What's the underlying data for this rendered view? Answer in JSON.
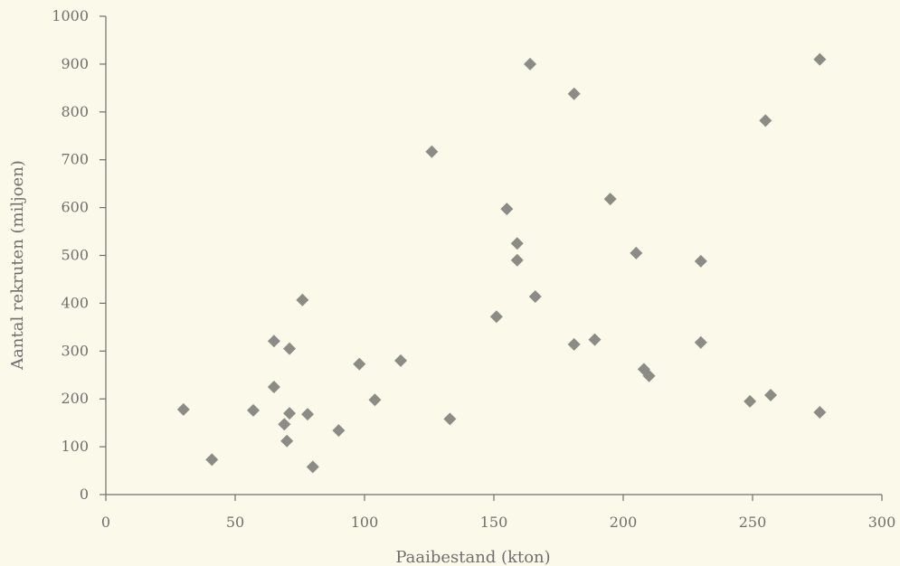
{
  "chart_data": {
    "type": "scatter",
    "title": "",
    "xlabel": "Paaibestand (kton)",
    "ylabel": "Aantal rekruten (miljoen)",
    "xlim": [
      0,
      300
    ],
    "ylim": [
      0,
      1000
    ],
    "xticks": [
      0,
      50,
      100,
      150,
      200,
      250,
      300
    ],
    "yticks": [
      0,
      100,
      200,
      300,
      400,
      500,
      600,
      700,
      800,
      900,
      1000
    ],
    "xtick_labels": [
      "0",
      "50",
      "100",
      "150",
      "200",
      "250",
      "300"
    ],
    "ytick_labels": [
      "0",
      "100",
      "200",
      "300",
      "400",
      "500",
      "600",
      "700",
      "800",
      "900",
      "1000"
    ],
    "grid": false,
    "marker": "diamond",
    "marker_color": "#8c8c86",
    "axis_color": "#6f6f6f",
    "background": "#fbf9e9",
    "points": [
      {
        "x": 30,
        "y": 178
      },
      {
        "x": 41,
        "y": 73
      },
      {
        "x": 57,
        "y": 176
      },
      {
        "x": 65,
        "y": 321
      },
      {
        "x": 65,
        "y": 225
      },
      {
        "x": 69,
        "y": 147
      },
      {
        "x": 70,
        "y": 112
      },
      {
        "x": 71,
        "y": 305
      },
      {
        "x": 71,
        "y": 170
      },
      {
        "x": 76,
        "y": 407
      },
      {
        "x": 78,
        "y": 168
      },
      {
        "x": 80,
        "y": 58
      },
      {
        "x": 90,
        "y": 134
      },
      {
        "x": 98,
        "y": 273
      },
      {
        "x": 104,
        "y": 198
      },
      {
        "x": 114,
        "y": 280
      },
      {
        "x": 126,
        "y": 717
      },
      {
        "x": 133,
        "y": 158
      },
      {
        "x": 151,
        "y": 372
      },
      {
        "x": 155,
        "y": 597
      },
      {
        "x": 159,
        "y": 525
      },
      {
        "x": 159,
        "y": 490
      },
      {
        "x": 164,
        "y": 900
      },
      {
        "x": 166,
        "y": 414
      },
      {
        "x": 181,
        "y": 838
      },
      {
        "x": 181,
        "y": 314
      },
      {
        "x": 189,
        "y": 324
      },
      {
        "x": 195,
        "y": 618
      },
      {
        "x": 205,
        "y": 505
      },
      {
        "x": 208,
        "y": 262
      },
      {
        "x": 210,
        "y": 248
      },
      {
        "x": 230,
        "y": 488
      },
      {
        "x": 230,
        "y": 318
      },
      {
        "x": 249,
        "y": 195
      },
      {
        "x": 255,
        "y": 782
      },
      {
        "x": 257,
        "y": 208
      },
      {
        "x": 276,
        "y": 910
      },
      {
        "x": 276,
        "y": 172
      }
    ]
  }
}
